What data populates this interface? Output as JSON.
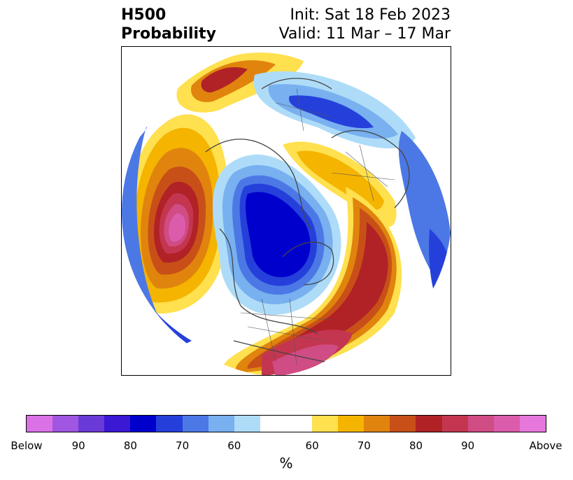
{
  "title": {
    "left_line1": "H500",
    "left_line2": "Probability",
    "right_line1": "Init: Sat 18 Feb 2023",
    "right_line2": "Valid: 11 Mar – 17 Mar"
  },
  "colorbar": {
    "unit": "%",
    "segments": [
      {
        "color": "#da72e6"
      },
      {
        "color": "#a056e0"
      },
      {
        "color": "#6a3ad8"
      },
      {
        "color": "#3a18d4"
      },
      {
        "color": "#0000cc"
      },
      {
        "color": "#2540da"
      },
      {
        "color": "#4c78e6"
      },
      {
        "color": "#78b0f0"
      },
      {
        "color": "#aedcf8"
      },
      {
        "color": "#ffffff"
      },
      {
        "color": "#ffffff"
      },
      {
        "color": "#ffe04e"
      },
      {
        "color": "#f4b400"
      },
      {
        "color": "#e0840e"
      },
      {
        "color": "#c85018"
      },
      {
        "color": "#b02226"
      },
      {
        "color": "#c43650"
      },
      {
        "color": "#d04c84"
      },
      {
        "color": "#dc5cac"
      },
      {
        "color": "#e678dc"
      }
    ],
    "tick_labels": [
      "Below",
      "90",
      "80",
      "70",
      "60",
      "60",
      "70",
      "80",
      "90",
      "Above"
    ]
  },
  "map": {
    "projection": "north-polar-stereographic",
    "variable": "500 hPa height anomaly probability"
  }
}
